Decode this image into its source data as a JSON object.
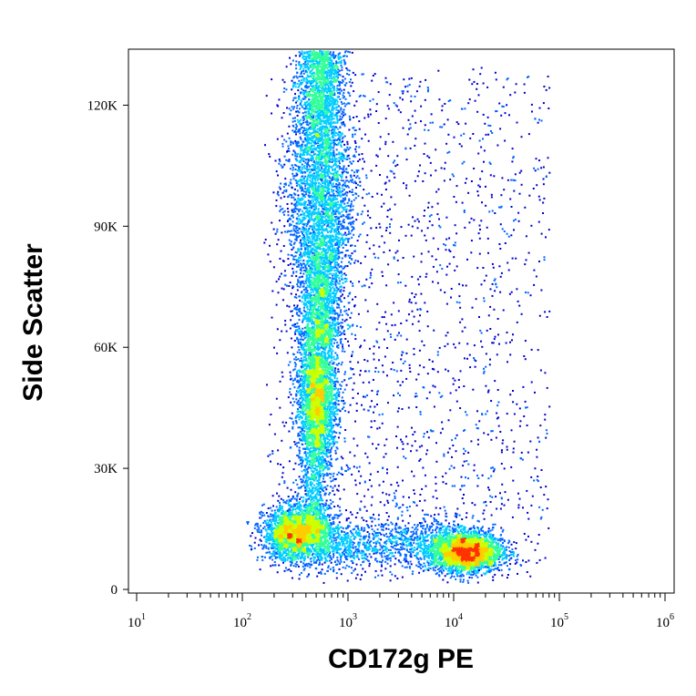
{
  "chart_data": {
    "type": "scatter",
    "xlabel": "CD172g PE",
    "ylabel": "Side Scatter",
    "x_scale": "log",
    "xlim": [
      10,
      1000000
    ],
    "ylim": [
      0,
      135000
    ],
    "x_ticks": [
      {
        "base": "10",
        "exp": "1",
        "value": 10
      },
      {
        "base": "10",
        "exp": "2",
        "value": 100
      },
      {
        "base": "10",
        "exp": "3",
        "value": 1000
      },
      {
        "base": "10",
        "exp": "4",
        "value": 10000
      },
      {
        "base": "10",
        "exp": "5",
        "value": 100000
      },
      {
        "base": "10",
        "exp": "6",
        "value": 1000000
      }
    ],
    "y_ticks": [
      {
        "label": "0",
        "value": 0
      },
      {
        "label": "30K",
        "value": 30000
      },
      {
        "label": "60K",
        "value": 60000
      },
      {
        "label": "90K",
        "value": 90000
      },
      {
        "label": "120K",
        "value": 120000
      }
    ],
    "grid": false,
    "colormap": [
      "#0000cc",
      "#0066ff",
      "#00ccff",
      "#33ff99",
      "#ccff00",
      "#ffcc00",
      "#ff3300"
    ],
    "populations": [
      {
        "x_center": 550,
        "y_center": 100000,
        "density": "high"
      },
      {
        "x_center": 550,
        "y_center": 47000,
        "density": "medium"
      },
      {
        "x_center": 330,
        "y_center": 14000,
        "density": "medium"
      },
      {
        "x_center": 13000,
        "y_center": 9500,
        "density": "high"
      }
    ]
  }
}
